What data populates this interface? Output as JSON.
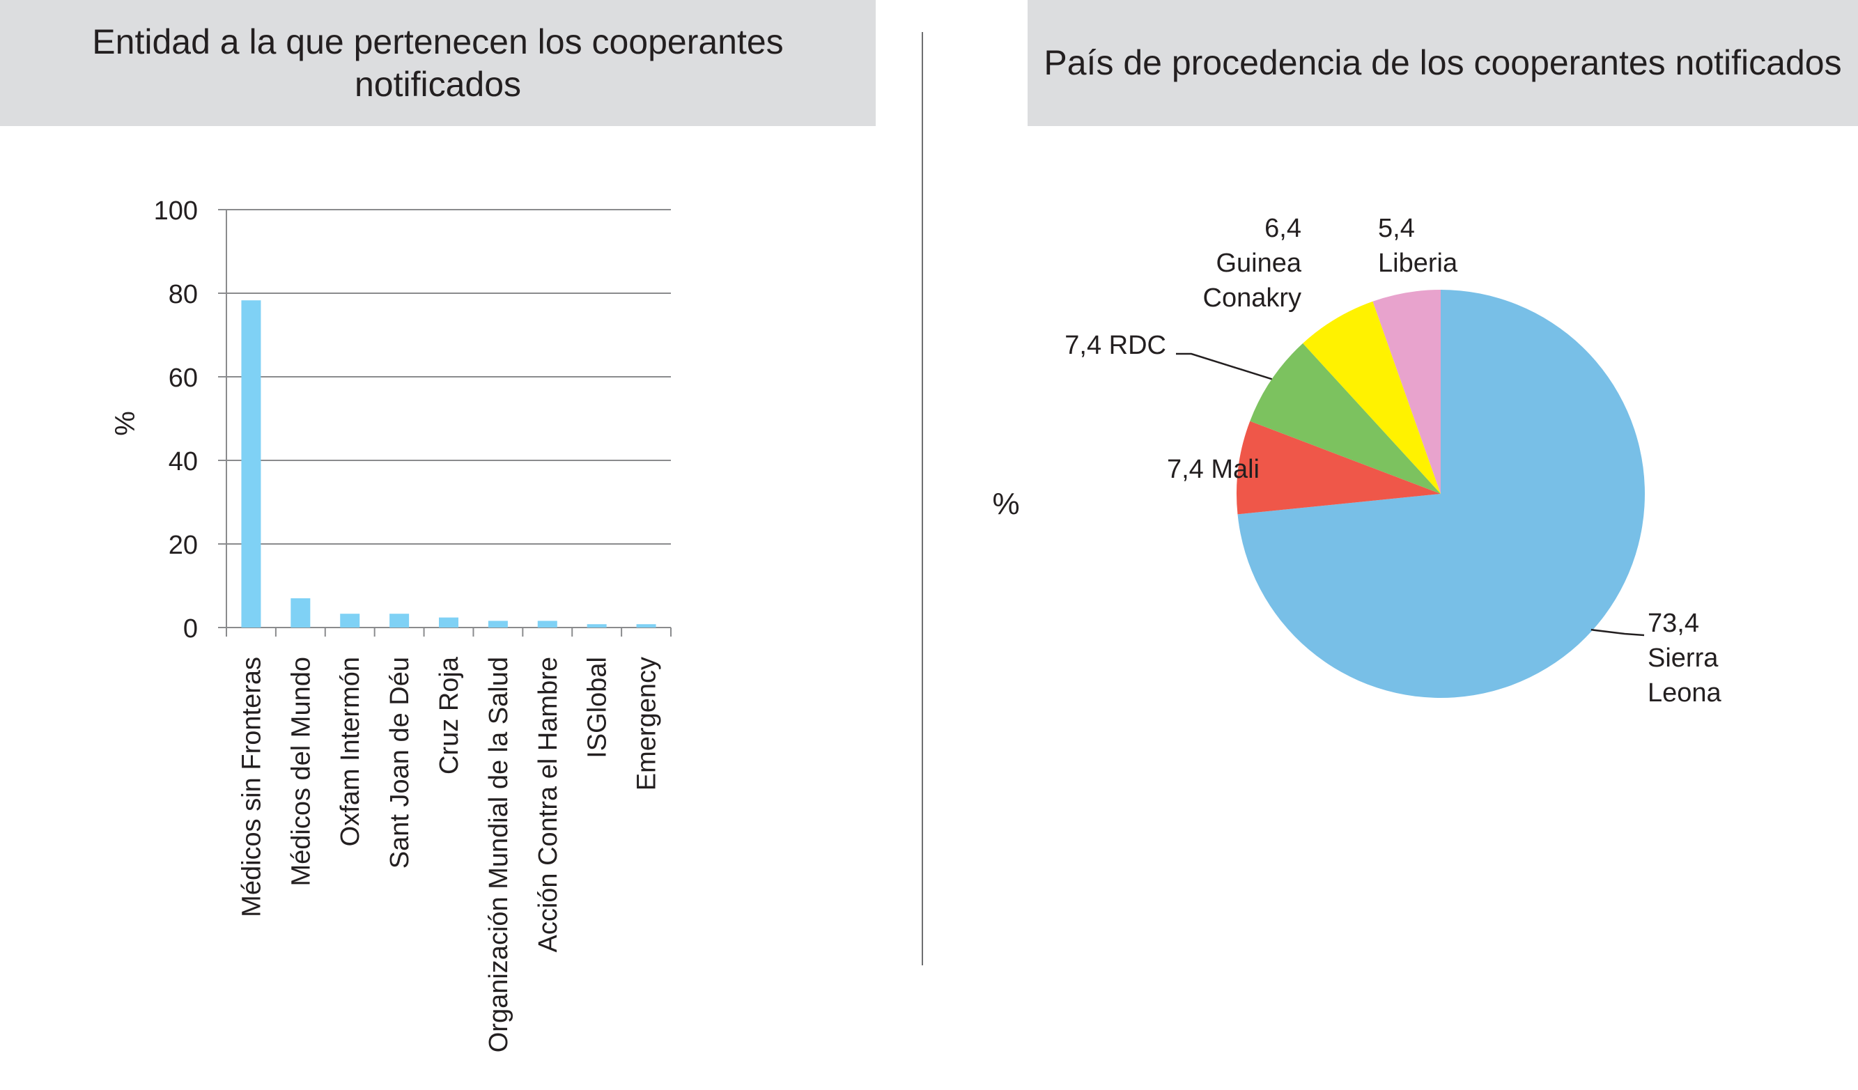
{
  "left_title": "Entidad a la que pertenecen los cooperantes notificados",
  "right_title": "País de procedencia de los cooperantes notificados",
  "chart_data": [
    {
      "type": "bar",
      "title": "Entidad a la que pertenecen los cooperantes notificados",
      "ylabel": "%",
      "xlabel": "",
      "ylim": [
        0,
        100
      ],
      "yticks": [
        "0",
        "20",
        "40",
        "60",
        "80",
        "100"
      ],
      "grid": true,
      "color": "#7fd1f5",
      "categories": [
        "Médicos sin Fronteras",
        "Médicos del Mundo",
        "Oxfam Intermón",
        "Sant Joan de Déu",
        "Cruz Roja",
        "Organización Mundial de la Salud",
        "Acción Contra el Hambre",
        "ISGlobal",
        "Emergency"
      ],
      "values": [
        78.3,
        7.0,
        3.3,
        3.3,
        2.4,
        1.6,
        1.6,
        0.8,
        0.8
      ]
    },
    {
      "type": "pie",
      "title": "País de procedencia de los cooperantes notificados",
      "ylabel": "%",
      "slices": [
        {
          "label": "Sierra Leona",
          "value": 73.4,
          "text": "73,4",
          "name_lines": [
            "Sierra",
            "Leona"
          ],
          "color": "#78bfe7"
        },
        {
          "label": "Mali",
          "value": 7.4,
          "text": "7,4 Mali",
          "color": "#ef5749"
        },
        {
          "label": "RDC",
          "value": 7.4,
          "text": "7,4 RDC",
          "color": "#7cc25f"
        },
        {
          "label": "Guinea Conakry",
          "value": 6.4,
          "text": "6,4",
          "name_lines": [
            "Guinea",
            "Conakry"
          ],
          "color": "#fff200"
        },
        {
          "label": "Liberia",
          "value": 5.4,
          "text": "5,4",
          "name_lines": [
            "Liberia"
          ],
          "color": "#e8a3cd"
        }
      ]
    }
  ]
}
